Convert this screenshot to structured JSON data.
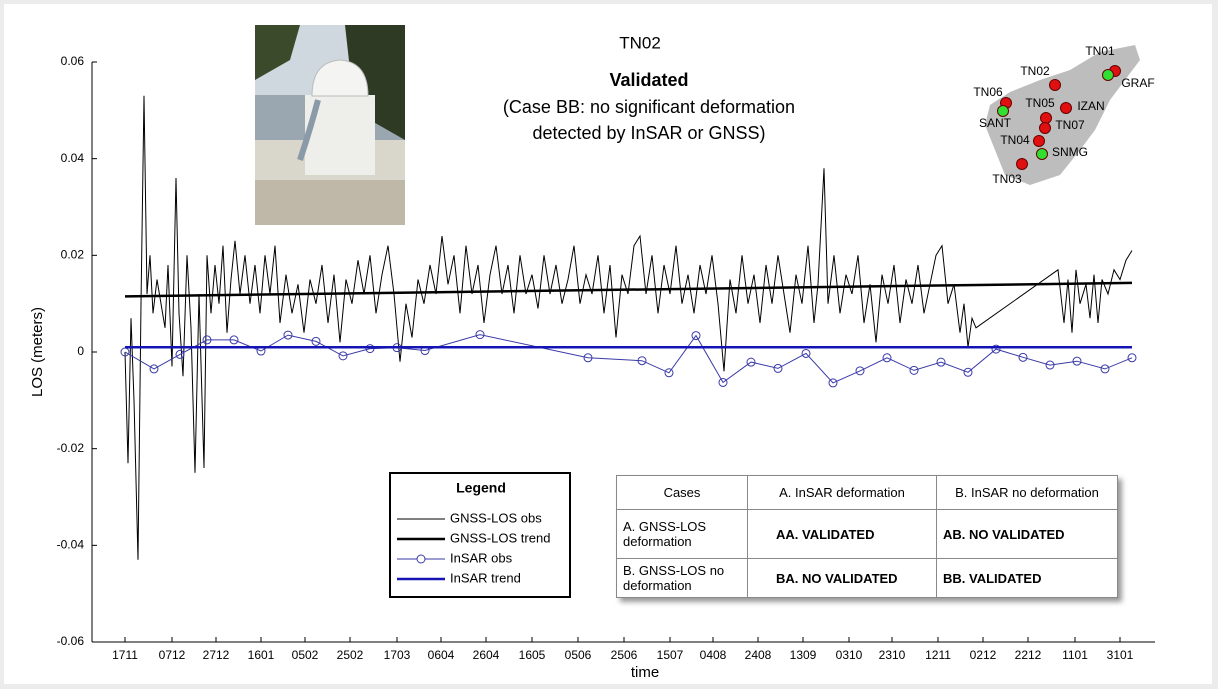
{
  "chart_data": {
    "type": "line",
    "title": "TN02",
    "annotations": [
      "Validated",
      "(Case BB: no significant deformation",
      "detected by InSAR or GNSS)"
    ],
    "xlabel": "time",
    "ylabel": "LOS (meters)",
    "legend_title": "Legend",
    "xlim": [
      -33,
      1030
    ],
    "xticks": [
      {
        "value": 0,
        "label": "1711"
      },
      {
        "value": 47,
        "label": "0712"
      },
      {
        "value": 91,
        "label": "2712"
      },
      {
        "value": 136,
        "label": "1601"
      },
      {
        "value": 180,
        "label": "0502"
      },
      {
        "value": 225,
        "label": "2502"
      },
      {
        "value": 272,
        "label": "1703"
      },
      {
        "value": 316,
        "label": "0604"
      },
      {
        "value": 361,
        "label": "2604"
      },
      {
        "value": 407,
        "label": "1605"
      },
      {
        "value": 453,
        "label": "0506"
      },
      {
        "value": 499,
        "label": "2506"
      },
      {
        "value": 545,
        "label": "1507"
      },
      {
        "value": 588,
        "label": "0408"
      },
      {
        "value": 633,
        "label": "2408"
      },
      {
        "value": 678,
        "label": "1309"
      },
      {
        "value": 724,
        "label": "0310"
      },
      {
        "value": 767,
        "label": "2310"
      },
      {
        "value": 813,
        "label": "1211"
      },
      {
        "value": 858,
        "label": "0212"
      },
      {
        "value": 903,
        "label": "2212"
      },
      {
        "value": 950,
        "label": "1101"
      },
      {
        "value": 995,
        "label": "3101"
      }
    ],
    "ylim": [
      -0.06,
      0.06
    ],
    "yticks": [
      0.06,
      0.04,
      0.02,
      0,
      -0.02,
      -0.04,
      -0.06
    ],
    "series": [
      {
        "name": "GNSS-LOS obs",
        "color": "#000000",
        "width": 1,
        "markers": false,
        "x": [
          0,
          3,
          6,
          9,
          13,
          16,
          19,
          22,
          25,
          28,
          32,
          36,
          40,
          43,
          47,
          51,
          54,
          58,
          62,
          66,
          70,
          74,
          79,
          82,
          86,
          90,
          94,
          98,
          102,
          106,
          110,
          115,
          120,
          125,
          130,
          135,
          140,
          145,
          150,
          155,
          161,
          167,
          173,
          179,
          185,
          191,
          197,
          203,
          209,
          215,
          221,
          227,
          233,
          239,
          245,
          251,
          257,
          263,
          269,
          275,
          281,
          287,
          293,
          299,
          305,
          311,
          317,
          323,
          329,
          335,
          341,
          347,
          353,
          359,
          365,
          371,
          377,
          383,
          389,
          395,
          401,
          407,
          413,
          419,
          425,
          431,
          437,
          443,
          449,
          455,
          461,
          467,
          473,
          479,
          485,
          491,
          497,
          503,
          509,
          515,
          521,
          527,
          533,
          539,
          545,
          551,
          557,
          563,
          569,
          575,
          581,
          587,
          593,
          599,
          605,
          611,
          617,
          623,
          629,
          635,
          641,
          647,
          653,
          659,
          665,
          671,
          677,
          683,
          689,
          693,
          699,
          703,
          709,
          715,
          721,
          727,
          733,
          739,
          745,
          751,
          757,
          763,
          769,
          775,
          781,
          787,
          793,
          799,
          805,
          811,
          817,
          823,
          829,
          835,
          839,
          843,
          847,
          851,
          933,
          939,
          943,
          947,
          951,
          955,
          961,
          965,
          969,
          973,
          977,
          983,
          989,
          995,
          1001,
          1007
        ],
        "values": [
          0.0,
          -0.023,
          0.007,
          -0.01,
          -0.043,
          0.01,
          0.053,
          0.012,
          0.02,
          0.008,
          0.015,
          0.01,
          0.005,
          0.018,
          -0.003,
          0.036,
          0.008,
          -0.005,
          0.02,
          0.005,
          -0.025,
          0.012,
          -0.024,
          0.02,
          0.008,
          0.018,
          0.01,
          0.022,
          0.004,
          0.015,
          0.023,
          0.012,
          0.02,
          0.01,
          0.018,
          0.008,
          0.02,
          0.012,
          0.022,
          0.006,
          0.016,
          0.008,
          0.014,
          0.004,
          0.015,
          0.01,
          0.018,
          0.006,
          0.016,
          0.002,
          0.015,
          0.01,
          0.019,
          0.012,
          0.02,
          0.008,
          0.016,
          0.022,
          0.012,
          -0.002,
          0.01,
          0.003,
          0.015,
          0.01,
          0.018,
          0.012,
          0.024,
          0.014,
          0.02,
          0.008,
          0.022,
          0.012,
          0.018,
          0.006,
          0.016,
          0.022,
          0.012,
          0.018,
          0.008,
          0.02,
          0.012,
          0.016,
          0.009,
          0.02,
          0.012,
          0.018,
          0.01,
          0.015,
          0.022,
          0.01,
          0.016,
          0.012,
          0.02,
          0.008,
          0.018,
          0.003,
          0.016,
          0.012,
          0.022,
          0.024,
          0.012,
          0.02,
          0.008,
          0.018,
          0.012,
          0.022,
          0.01,
          0.016,
          0.008,
          0.018,
          0.012,
          0.02,
          0.01,
          -0.004,
          0.015,
          0.008,
          0.02,
          0.01,
          0.016,
          0.006,
          0.018,
          0.01,
          0.02,
          0.012,
          0.004,
          0.016,
          0.01,
          0.022,
          0.006,
          0.014,
          0.038,
          0.01,
          0.02,
          0.008,
          0.016,
          0.012,
          0.02,
          0.006,
          0.014,
          0.002,
          0.016,
          0.01,
          0.018,
          0.006,
          0.015,
          0.01,
          0.018,
          0.008,
          0.014,
          0.02,
          0.022,
          0.01,
          0.014,
          0.004,
          0.01,
          0.001,
          0.007,
          0.005,
          0.017,
          0.006,
          0.015,
          0.004,
          0.017,
          0.01,
          0.014,
          0.007,
          0.016,
          0.006,
          0.015,
          0.012,
          0.017,
          0.015,
          0.019,
          0.021
        ]
      },
      {
        "name": "GNSS-LOS trend",
        "color": "#000000",
        "width": 2.5,
        "markers": false,
        "x": [
          0,
          1007
        ],
        "values": [
          0.0115,
          0.0143
        ]
      },
      {
        "name": "InSAR obs",
        "color": "#3a3aa8",
        "width": 1,
        "markers": true,
        "x": [
          0,
          29,
          55,
          82,
          109,
          136,
          163,
          191,
          218,
          245,
          272,
          300,
          355,
          463,
          517,
          544,
          571,
          598,
          626,
          653,
          681,
          708,
          735,
          762,
          789,
          816,
          843,
          871,
          898,
          925,
          952,
          980,
          1007
        ],
        "values": [
          0,
          -0.0035,
          -0.0005,
          0.0025,
          0.0025,
          0.0002,
          0.0035,
          0.0022,
          -0.0008,
          0.0007,
          0.0009,
          0.0003,
          0.0036,
          -0.0012,
          -0.0018,
          -0.0043,
          0.0034,
          -0.0063,
          -0.0021,
          -0.0034,
          -0.0003,
          -0.0064,
          -0.0039,
          -0.0012,
          -0.0038,
          -0.0021,
          -0.0042,
          0.0006,
          -0.0011,
          -0.0027,
          -0.0019,
          -0.0035,
          -0.0012
        ]
      },
      {
        "name": "InSAR trend",
        "color": "#1414b4",
        "width": 2.5,
        "markers": false,
        "x": [
          0,
          1007
        ],
        "values": [
          0.001,
          0.001
        ]
      }
    ]
  },
  "table": {
    "header": [
      "Cases",
      "A. InSAR deformation",
      "B. InSAR no deformation"
    ],
    "rows": [
      [
        "A. GNSS-LOS deformation",
        "AA. VALIDATED",
        "AB. NO VALIDATED"
      ],
      [
        "B. GNSS-LOS no deformation",
        "BA. NO VALIDATED",
        "BB. VALIDATED"
      ]
    ]
  },
  "map": {
    "labels": [
      "TN01",
      "GRAF",
      "TN02",
      "TN06",
      "SANT",
      "TN05",
      "IZAN",
      "TN07",
      "TN04",
      "SNMG",
      "TN03"
    ]
  }
}
